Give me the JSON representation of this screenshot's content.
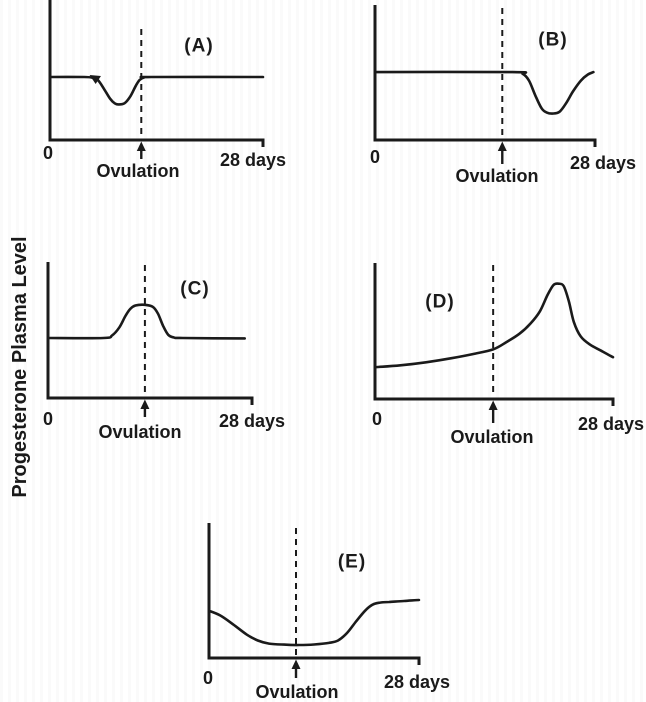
{
  "figure": {
    "y_axis_label": "Progesterone Plasma Level",
    "ink_color": "#1a1a1a",
    "background_color": "#ffffff",
    "panel_count": 5,
    "description": "Five hand-drawn line plots (A-E) of progesterone plasma level over a 28-day cycle, each with a dashed vertical line and upward arrow marking Ovulation on the time axis."
  },
  "chart_data": [
    {
      "type": "line",
      "panel": "A",
      "title": "(A)",
      "ylabel": "Progesterone Plasma Level",
      "xlabel": "days",
      "x_range": [
        0,
        28
      ],
      "ylim": [
        0,
        1
      ],
      "x_tick_labels": [
        "0",
        "28 days"
      ],
      "ovulation_label": "Ovulation",
      "ovulation_day": 12,
      "grid": false,
      "legend": false,
      "description": "Flat baseline with a transient dip shortly before ovulation; returns to baseline at ovulation and stays flat until day 28.",
      "x": [
        0,
        4.5,
        5.6,
        6.3,
        7.1,
        7.9,
        8.5,
        9.0,
        9.8,
        10.6,
        11.3,
        11.8,
        12.4,
        13.3,
        28
      ],
      "y": [
        0.45,
        0.45,
        0.444,
        0.428,
        0.365,
        0.295,
        0.262,
        0.254,
        0.263,
        0.315,
        0.39,
        0.43,
        0.447,
        0.45,
        0.45
      ]
    },
    {
      "type": "line",
      "panel": "B",
      "title": "(B)",
      "ylabel": "Progesterone Plasma Level",
      "xlabel": "days",
      "x_range": [
        0,
        28
      ],
      "ylim": [
        0,
        1
      ],
      "x_tick_labels": [
        "0",
        "28 days"
      ],
      "ovulation_label": "Ovulation",
      "ovulation_day": 16.2,
      "grid": false,
      "legend": false,
      "description": "Flat baseline through ovulation, then a dip in the late luteal phase that recovers by day 28.",
      "x": [
        0,
        17.5,
        18.8,
        19.6,
        20.4,
        21.2,
        21.9,
        22.7,
        23.5,
        24.3,
        25.2,
        26.2,
        27.1,
        27.8
      ],
      "y": [
        0.503,
        0.503,
        0.49,
        0.44,
        0.33,
        0.235,
        0.202,
        0.196,
        0.21,
        0.27,
        0.36,
        0.44,
        0.485,
        0.503
      ]
    },
    {
      "type": "line",
      "panel": "C",
      "title": "(C)",
      "ylabel": "Progesterone Plasma Level",
      "xlabel": "days",
      "x_range": [
        0,
        28
      ],
      "ylim": [
        0,
        1
      ],
      "x_tick_labels": [
        "0",
        "28 days"
      ],
      "ovulation_label": "Ovulation",
      "ovulation_day": 13.3,
      "grid": false,
      "legend": false,
      "description": "Flat baseline with a rounded bump centered on ovulation, then back to baseline.",
      "x": [
        0,
        7.6,
        8.8,
        9.8,
        10.6,
        11.3,
        12.0,
        13.3,
        14.4,
        15.1,
        15.8,
        16.5,
        17.3,
        18.5,
        27.0
      ],
      "y": [
        0.441,
        0.441,
        0.46,
        0.52,
        0.6,
        0.655,
        0.68,
        0.685,
        0.67,
        0.62,
        0.53,
        0.465,
        0.445,
        0.441,
        0.438
      ]
    },
    {
      "type": "line",
      "panel": "D",
      "title": "(D)",
      "ylabel": "Progesterone Plasma Level",
      "xlabel": "days",
      "x_range": [
        0,
        28
      ],
      "ylim": [
        0,
        1
      ],
      "x_tick_labels": [
        "0",
        "28 days"
      ],
      "ovulation_label": "Ovulation",
      "ovulation_day": 13.9,
      "grid": false,
      "legend": false,
      "description": "Low slowly-rising level before ovulation, steep rise after ovulation to a mid-luteal peak around day 21, then decline toward day 28.",
      "x": [
        0,
        3,
        6,
        9,
        11.5,
        13.9,
        15.5,
        17,
        18.3,
        19.4,
        20.3,
        21.0,
        21.6,
        22.2,
        22.8,
        23.4,
        24.2,
        25.3,
        26.6,
        28
      ],
      "y": [
        0.234,
        0.248,
        0.27,
        0.3,
        0.33,
        0.365,
        0.42,
        0.48,
        0.555,
        0.645,
        0.765,
        0.838,
        0.848,
        0.83,
        0.72,
        0.565,
        0.46,
        0.4,
        0.355,
        0.307
      ]
    },
    {
      "type": "line",
      "panel": "E",
      "title": "(E)",
      "ylabel": "Progesterone Plasma Level",
      "xlabel": "days",
      "x_range": [
        0,
        28
      ],
      "ylim": [
        0,
        1
      ],
      "x_tick_labels": [
        "0",
        "28 days"
      ],
      "ovulation_label": "Ovulation",
      "ovulation_day": 11.6,
      "grid": false,
      "legend": false,
      "description": "Moderate starting level declining to a low flat trough spanning ovulation, then rising after day 18 to a plateau by day 28.",
      "x": [
        0,
        1.5,
        3.2,
        5.0,
        6.5,
        8.0,
        10,
        12,
        14,
        16,
        17.2,
        18.4,
        19.6,
        20.8,
        21.8,
        22.8,
        24,
        26,
        28
      ],
      "y": [
        0.35,
        0.315,
        0.25,
        0.175,
        0.13,
        0.107,
        0.099,
        0.096,
        0.1,
        0.112,
        0.13,
        0.185,
        0.27,
        0.35,
        0.395,
        0.41,
        0.415,
        0.422,
        0.43
      ]
    }
  ]
}
